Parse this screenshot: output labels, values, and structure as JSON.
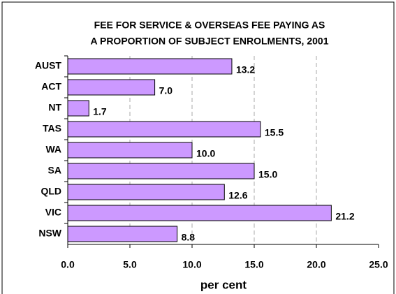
{
  "chart_data": {
    "type": "hbar",
    "title": [
      "FEE FOR SERVICE & OVERSEAS FEE PAYING AS",
      "A PROPORTION OF SUBJECT ENROLMENTS, 2001"
    ],
    "categories": [
      "AUST",
      "ACT",
      "NT",
      "TAS",
      "WA",
      "SA",
      "QLD",
      "VIC",
      "NSW"
    ],
    "values": [
      13.2,
      7.0,
      1.7,
      15.5,
      10.0,
      15.0,
      12.6,
      21.2,
      8.8
    ],
    "value_labels": [
      "13.2",
      "7.0",
      "1.7",
      "15.5",
      "10.0",
      "15.0",
      "12.6",
      "21.2",
      "8.8"
    ],
    "color": "#cc99ff",
    "xlabel": "per cent",
    "xlim": [
      0,
      25
    ],
    "xticks": [
      {
        "value": 0,
        "label": "0.0"
      },
      {
        "value": 5,
        "label": "5.0"
      },
      {
        "value": 10,
        "label": "10.0"
      },
      {
        "value": 15,
        "label": "15.0"
      },
      {
        "value": 20,
        "label": "20.0"
      },
      {
        "value": 25,
        "label": "25.0"
      }
    ],
    "grid": true
  }
}
